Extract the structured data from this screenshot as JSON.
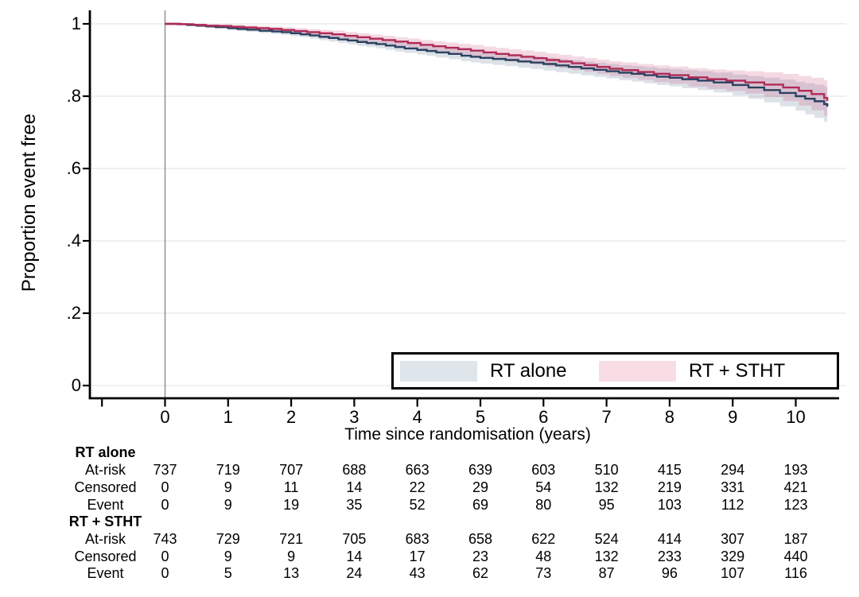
{
  "axes": {
    "x": {
      "label": "Time since randomisation (years)",
      "tick_values": [
        0,
        1,
        2,
        3,
        4,
        5,
        6,
        7,
        8,
        9,
        10
      ],
      "tick_labels": [
        "0",
        "1",
        "2",
        "3",
        "4",
        "5",
        "6",
        "7",
        "8",
        "9",
        "10"
      ],
      "extra_unlabeled_ticks": [
        -1
      ],
      "range": [
        -1.2,
        10.7
      ]
    },
    "y": {
      "label": "Proportion event free",
      "tick_values": [
        0,
        0.2,
        0.4,
        0.6,
        0.8,
        1
      ],
      "tick_labels": [
        "0",
        ".2",
        ".4",
        ".6",
        ".8",
        "1"
      ],
      "range": [
        0,
        1
      ],
      "grid": true
    }
  },
  "legend": {
    "position": "inside-bottom-right",
    "items": [
      {
        "label": "RT alone",
        "swatch_color": "#dee6eb"
      },
      {
        "label": "RT + STHT",
        "swatch_color": "#f8dde5"
      }
    ]
  },
  "colors": {
    "rt_alone_line": "#2b4160",
    "rt_stht_line": "#b02a57",
    "rt_alone_band": "rgba(96,124,150,0.22)",
    "rt_stht_band": "rgba(203,84,128,0.22)",
    "gridline": "#ececec",
    "zero_line": "#909090",
    "axis": "#000000"
  },
  "chart_data": {
    "type": "line",
    "subtype": "kaplan-meier-step-with-ci-bands",
    "title": "",
    "xlabel": "Time since randomisation (years)",
    "ylabel": "Proportion event free",
    "xlim": [
      -1.2,
      10.7
    ],
    "ylim": [
      0,
      1
    ],
    "series": [
      {
        "name": "RT alone",
        "color": "#2b4160",
        "band_color": "rgba(96,124,150,0.22)",
        "points": [
          [
            0,
            1.0
          ],
          [
            0.2,
            0.999
          ],
          [
            0.35,
            0.997
          ],
          [
            0.5,
            0.995
          ],
          [
            0.65,
            0.993
          ],
          [
            0.8,
            0.991
          ],
          [
            1.0,
            0.988
          ],
          [
            1.15,
            0.986
          ],
          [
            1.3,
            0.984
          ],
          [
            1.5,
            0.981
          ],
          [
            1.7,
            0.979
          ],
          [
            1.85,
            0.977
          ],
          [
            2.0,
            0.974
          ],
          [
            2.15,
            0.971
          ],
          [
            2.3,
            0.968
          ],
          [
            2.45,
            0.964
          ],
          [
            2.6,
            0.961
          ],
          [
            2.75,
            0.957
          ],
          [
            2.9,
            0.954
          ],
          [
            3.05,
            0.95
          ],
          [
            3.2,
            0.947
          ],
          [
            3.35,
            0.944
          ],
          [
            3.5,
            0.94
          ],
          [
            3.65,
            0.936
          ],
          [
            3.8,
            0.932
          ],
          [
            4.0,
            0.928
          ],
          [
            4.15,
            0.925
          ],
          [
            4.3,
            0.921
          ],
          [
            4.5,
            0.917
          ],
          [
            4.7,
            0.912
          ],
          [
            4.85,
            0.909
          ],
          [
            5.0,
            0.906
          ],
          [
            5.2,
            0.903
          ],
          [
            5.4,
            0.9
          ],
          [
            5.6,
            0.896
          ],
          [
            5.8,
            0.893
          ],
          [
            6.0,
            0.889
          ],
          [
            6.2,
            0.885
          ],
          [
            6.4,
            0.881
          ],
          [
            6.6,
            0.877
          ],
          [
            6.8,
            0.873
          ],
          [
            7.0,
            0.869
          ],
          [
            7.2,
            0.865
          ],
          [
            7.4,
            0.862
          ],
          [
            7.6,
            0.858
          ],
          [
            7.8,
            0.854
          ],
          [
            8.0,
            0.851
          ],
          [
            8.2,
            0.847
          ],
          [
            8.45,
            0.843
          ],
          [
            8.7,
            0.838
          ],
          [
            9.0,
            0.831
          ],
          [
            9.25,
            0.824
          ],
          [
            9.5,
            0.817
          ],
          [
            9.75,
            0.809
          ],
          [
            10.0,
            0.8
          ],
          [
            10.15,
            0.793
          ],
          [
            10.3,
            0.786
          ],
          [
            10.45,
            0.778
          ],
          [
            10.5,
            0.771
          ]
        ],
        "ci_halfwidth_anchors": [
          [
            0,
            0.001
          ],
          [
            0.5,
            0.003
          ],
          [
            1,
            0.005
          ],
          [
            2,
            0.008
          ],
          [
            3,
            0.011
          ],
          [
            4,
            0.013
          ],
          [
            5,
            0.016
          ],
          [
            6,
            0.018
          ],
          [
            7,
            0.02
          ],
          [
            8,
            0.024
          ],
          [
            9,
            0.029
          ],
          [
            9.5,
            0.034
          ],
          [
            10,
            0.04
          ],
          [
            10.5,
            0.05
          ]
        ]
      },
      {
        "name": "RT + STHT",
        "color": "#b02a57",
        "band_color": "rgba(203,84,128,0.22)",
        "points": [
          [
            0,
            1.0
          ],
          [
            0.25,
            0.999
          ],
          [
            0.45,
            0.997
          ],
          [
            0.65,
            0.995
          ],
          [
            0.85,
            0.994
          ],
          [
            1.05,
            0.992
          ],
          [
            1.25,
            0.99
          ],
          [
            1.45,
            0.988
          ],
          [
            1.65,
            0.986
          ],
          [
            1.85,
            0.983
          ],
          [
            2.05,
            0.98
          ],
          [
            2.25,
            0.977
          ],
          [
            2.45,
            0.974
          ],
          [
            2.65,
            0.971
          ],
          [
            2.85,
            0.967
          ],
          [
            3.05,
            0.963
          ],
          [
            3.25,
            0.959
          ],
          [
            3.45,
            0.955
          ],
          [
            3.65,
            0.951
          ],
          [
            3.85,
            0.947
          ],
          [
            4.05,
            0.942
          ],
          [
            4.25,
            0.938
          ],
          [
            4.45,
            0.934
          ],
          [
            4.65,
            0.93
          ],
          [
            4.85,
            0.926
          ],
          [
            5.05,
            0.921
          ],
          [
            5.25,
            0.917
          ],
          [
            5.45,
            0.913
          ],
          [
            5.65,
            0.909
          ],
          [
            5.85,
            0.905
          ],
          [
            6.05,
            0.9
          ],
          [
            6.25,
            0.896
          ],
          [
            6.45,
            0.891
          ],
          [
            6.65,
            0.886
          ],
          [
            6.85,
            0.881
          ],
          [
            7.05,
            0.876
          ],
          [
            7.25,
            0.872
          ],
          [
            7.5,
            0.867
          ],
          [
            7.75,
            0.862
          ],
          [
            8.0,
            0.858
          ],
          [
            8.3,
            0.852
          ],
          [
            8.6,
            0.847
          ],
          [
            8.9,
            0.843
          ],
          [
            9.2,
            0.838
          ],
          [
            9.5,
            0.832
          ],
          [
            9.8,
            0.824
          ],
          [
            10.05,
            0.815
          ],
          [
            10.25,
            0.806
          ],
          [
            10.45,
            0.795
          ],
          [
            10.5,
            0.787
          ]
        ],
        "ci_halfwidth_anchors": [
          [
            0,
            0.001
          ],
          [
            0.5,
            0.003
          ],
          [
            1,
            0.005
          ],
          [
            2,
            0.008
          ],
          [
            3,
            0.011
          ],
          [
            4,
            0.013
          ],
          [
            5,
            0.016
          ],
          [
            6,
            0.018
          ],
          [
            7,
            0.02
          ],
          [
            8,
            0.024
          ],
          [
            9,
            0.029
          ],
          [
            9.5,
            0.034
          ],
          [
            10,
            0.04
          ],
          [
            10.5,
            0.05
          ]
        ]
      }
    ]
  },
  "risk_table": {
    "times": [
      0,
      1,
      2,
      3,
      4,
      5,
      6,
      7,
      8,
      9,
      10
    ],
    "groups": [
      {
        "name": "RT alone",
        "rows": [
          {
            "label": "At-risk",
            "values": [
              "737",
              "719",
              "707",
              "688",
              "663",
              "639",
              "603",
              "510",
              "415",
              "294",
              "193"
            ]
          },
          {
            "label": "Censored",
            "values": [
              "0",
              "9",
              "11",
              "14",
              "22",
              "29",
              "54",
              "132",
              "219",
              "331",
              "421"
            ]
          },
          {
            "label": "Event",
            "values": [
              "0",
              "9",
              "19",
              "35",
              "52",
              "69",
              "80",
              "95",
              "103",
              "112",
              "123"
            ]
          }
        ]
      },
      {
        "name": "RT + STHT",
        "rows": [
          {
            "label": "At-risk",
            "values": [
              "743",
              "729",
              "721",
              "705",
              "683",
              "658",
              "622",
              "524",
              "414",
              "307",
              "187"
            ]
          },
          {
            "label": "Censored",
            "values": [
              "0",
              "9",
              "9",
              "14",
              "17",
              "23",
              "48",
              "132",
              "233",
              "329",
              "440"
            ]
          },
          {
            "label": "Event",
            "values": [
              "0",
              "5",
              "13",
              "24",
              "43",
              "62",
              "73",
              "87",
              "96",
              "107",
              "116"
            ]
          }
        ]
      }
    ]
  }
}
